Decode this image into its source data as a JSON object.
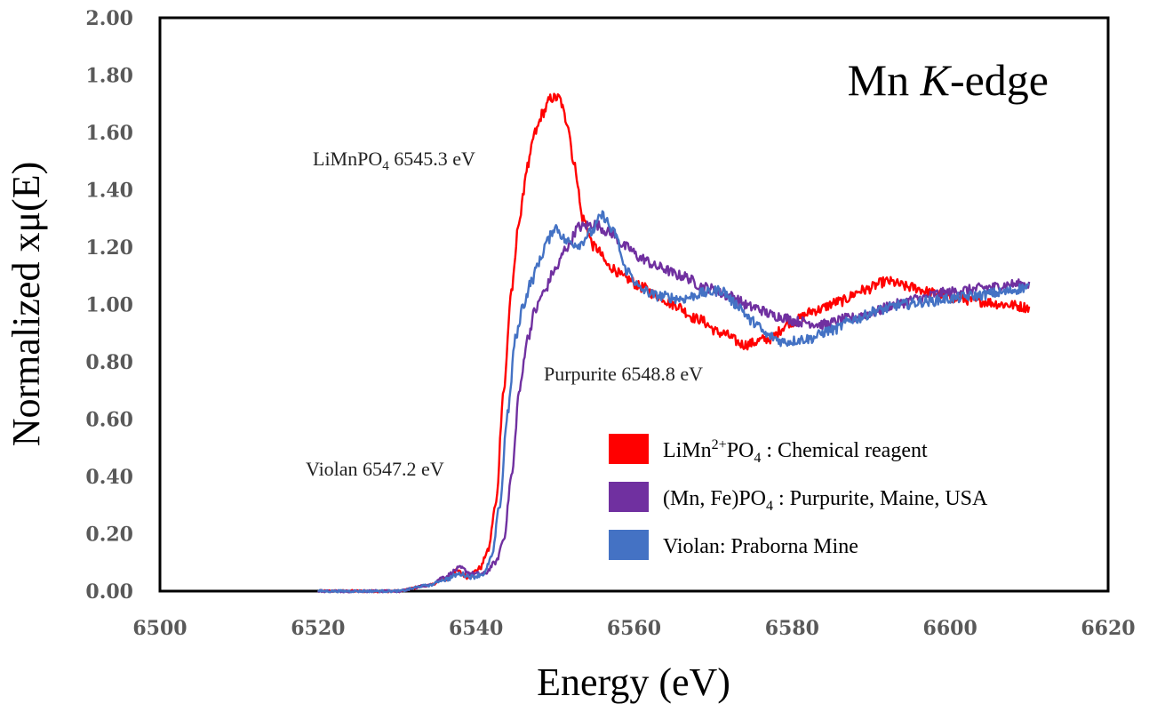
{
  "chart_data": {
    "type": "line",
    "title": {
      "main": "Mn ",
      "italic": "K",
      "rest": "-edge"
    },
    "xlabel": "Energy (eV)",
    "ylabel": "Normalized xμ(E)",
    "xlim": [
      6500,
      6620
    ],
    "ylim": [
      0,
      2
    ],
    "xticks": [
      6500,
      6520,
      6540,
      6560,
      6580,
      6600,
      6620
    ],
    "xtick_labels": [
      "6500",
      "6520",
      "6540",
      "6560",
      "6580",
      "6600",
      "6620"
    ],
    "yticks": [
      0,
      0.2,
      0.4,
      0.6,
      0.8,
      1.0,
      1.2,
      1.4,
      1.6,
      1.8,
      2.0
    ],
    "ytick_labels": [
      "0.00",
      "0.20",
      "0.40",
      "0.60",
      "0.80",
      "1.00",
      "1.20",
      "1.40",
      "1.60",
      "1.80",
      "2.00"
    ],
    "grid": false,
    "legend_position": "bottom-right",
    "series": [
      {
        "name": "LiMn2+PO4 : Chemical reagent",
        "legend": {
          "t1": "LiMn",
          "sup": "2+",
          "t2": "PO",
          "sub": "4",
          "t3": " : Chemical reagent"
        },
        "color": "#ff0000",
        "x": [
          6520,
          6530,
          6534,
          6536,
          6537.5,
          6539,
          6540.5,
          6541.5,
          6542.5,
          6543.5,
          6544.5,
          6545.5,
          6546.5,
          6547.5,
          6548.5,
          6549.5,
          6550.5,
          6551.5,
          6552.5,
          6553.5,
          6555,
          6557,
          6559,
          6561,
          6563,
          6565,
          6568,
          6571,
          6574,
          6577,
          6580,
          6583,
          6586,
          6589,
          6592,
          6595,
          6598,
          6601,
          6604,
          6607,
          6610
        ],
        "y": [
          0.0,
          0.0,
          0.02,
          0.04,
          0.07,
          0.05,
          0.08,
          0.14,
          0.3,
          0.7,
          1.05,
          1.3,
          1.48,
          1.6,
          1.67,
          1.72,
          1.72,
          1.64,
          1.48,
          1.3,
          1.2,
          1.13,
          1.09,
          1.06,
          1.03,
          1.0,
          0.95,
          0.9,
          0.86,
          0.88,
          0.94,
          0.98,
          1.01,
          1.05,
          1.08,
          1.06,
          1.04,
          1.02,
          1.01,
          1.0,
          0.99
        ]
      },
      {
        "name": "(Mn, Fe)PO4 : Purpurite, Maine, USA",
        "legend": {
          "t1": "(Mn, Fe)PO",
          "sup": "",
          "t2": "",
          "sub": "4",
          "t3": " : Purpurite, Maine, USA"
        },
        "color": "#7030a0",
        "x": [
          6520,
          6530,
          6534,
          6536,
          6538,
          6539.5,
          6541,
          6542.5,
          6543.5,
          6544.5,
          6545.5,
          6546.5,
          6547.5,
          6548.5,
          6550,
          6551.5,
          6553,
          6555,
          6557,
          6559,
          6561,
          6563,
          6566,
          6569,
          6572,
          6575,
          6578,
          6581,
          6584,
          6587,
          6590,
          6593,
          6596,
          6599,
          6602,
          6605,
          6608,
          6610
        ],
        "y": [
          0.0,
          0.0,
          0.02,
          0.05,
          0.08,
          0.06,
          0.06,
          0.1,
          0.18,
          0.4,
          0.7,
          0.88,
          0.98,
          1.04,
          1.12,
          1.2,
          1.27,
          1.28,
          1.25,
          1.2,
          1.16,
          1.13,
          1.1,
          1.06,
          1.03,
          0.99,
          0.96,
          0.94,
          0.93,
          0.95,
          0.97,
          1.0,
          1.02,
          1.04,
          1.05,
          1.06,
          1.07,
          1.07
        ]
      },
      {
        "name": "Violan: Praborna Mine",
        "legend": {
          "t1": "Violan: Praborna Mine",
          "sup": "",
          "t2": "",
          "sub": "",
          "t3": ""
        },
        "color": "#4472c4",
        "x": [
          6520,
          6530,
          6534,
          6536,
          6538,
          6539.5,
          6541,
          6542,
          6543,
          6544,
          6545,
          6546,
          6547,
          6548,
          6549,
          6550,
          6551.5,
          6553,
          6554.5,
          6556,
          6557.5,
          6559,
          6561,
          6563,
          6566,
          6569,
          6571,
          6573,
          6575,
          6577,
          6579,
          6582,
          6585,
          6588,
          6591,
          6594,
          6597,
          6600,
          6603,
          6606,
          6610
        ],
        "y": [
          0.0,
          0.0,
          0.02,
          0.04,
          0.06,
          0.05,
          0.06,
          0.12,
          0.3,
          0.62,
          0.88,
          1.0,
          1.08,
          1.15,
          1.22,
          1.27,
          1.22,
          1.21,
          1.25,
          1.31,
          1.25,
          1.12,
          1.05,
          1.03,
          1.02,
          1.04,
          1.05,
          1.0,
          0.94,
          0.89,
          0.87,
          0.88,
          0.91,
          0.95,
          0.98,
          1.0,
          1.01,
          1.02,
          1.03,
          1.04,
          1.06
        ]
      }
    ],
    "annotations": [
      {
        "text": "LiMn",
        "sub_tail": "PO",
        "sub": "4",
        "after": " 6545.3 eV",
        "x": 6531,
        "y": 1.48
      },
      {
        "text": "Purpurite 6548.8 eV",
        "x": 6546,
        "y": 0.72
      },
      {
        "text": "Violan 6547.2 eV",
        "x": 6528,
        "y": 0.39
      }
    ]
  }
}
